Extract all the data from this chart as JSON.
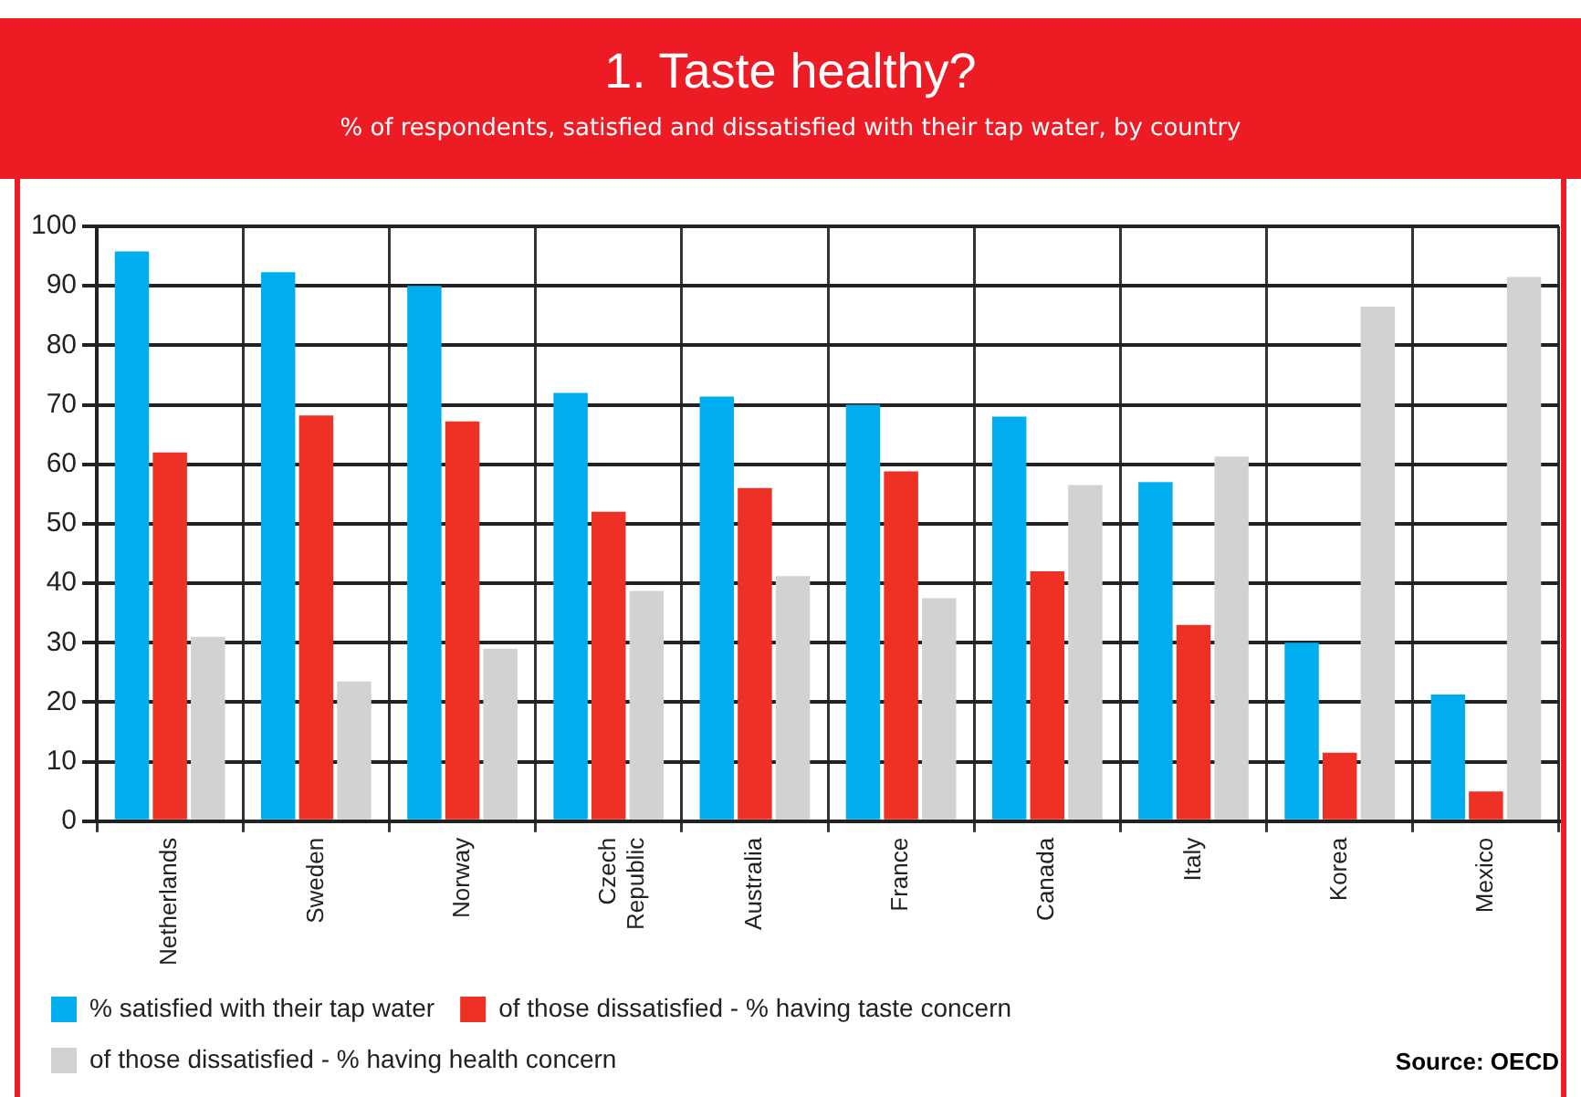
{
  "chart_data": {
    "type": "bar",
    "title": "1. Taste healthy?",
    "subtitle": "% of respondents, satisfied and dissatisfied with their tap water, by country",
    "categories": [
      "Netherlands",
      "Sweden",
      "Norway",
      "Czech Republic",
      "Australia",
      "France",
      "Canada",
      "Italy",
      "Korea",
      "Mexico"
    ],
    "series": [
      {
        "name": "% satisfied with their tap water",
        "color": "#00aeef",
        "values": [
          95.8,
          92.3,
          90,
          72,
          71.4,
          70,
          68,
          57,
          30,
          21.3
        ]
      },
      {
        "name": "of those dissatisfied - % having taste concern",
        "color": "#ee3124",
        "values": [
          62,
          68.2,
          67.2,
          52,
          56,
          58.8,
          42,
          33,
          11.5,
          5
        ]
      },
      {
        "name": "of those dissatisfied - % having health concern",
        "color": "#d1d2d4",
        "values": [
          31,
          23.5,
          29,
          38.7,
          41.2,
          37.5,
          56.5,
          61.3,
          86.5,
          91.5
        ]
      }
    ],
    "ylim": [
      0,
      100
    ],
    "yticks": [
      0,
      10,
      20,
      30,
      40,
      50,
      60,
      70,
      80,
      90,
      100
    ],
    "grid": true,
    "legend": "bottom left",
    "annotations": [
      "Source: OECD"
    ]
  }
}
